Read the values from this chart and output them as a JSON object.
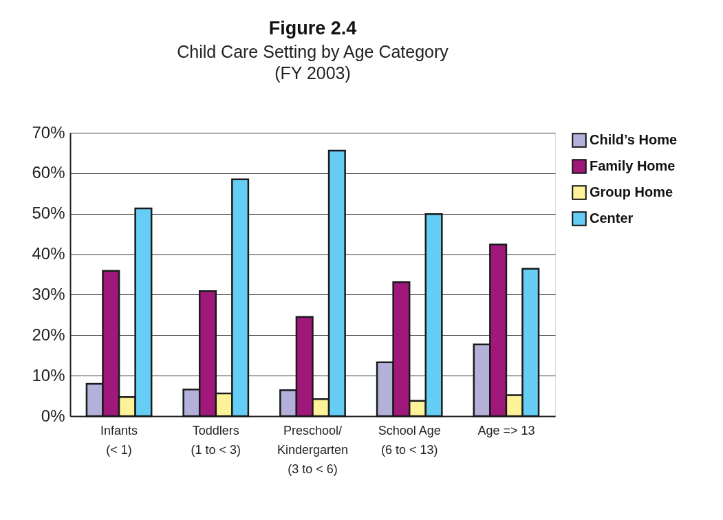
{
  "chart_data": {
    "type": "bar",
    "title": "Figure 2.4",
    "subtitle": [
      "Child Care Setting by Age Category",
      "(FY 2003)"
    ],
    "categories": [
      "Infants\n(< 1)",
      "Toddlers\n(1 to < 3)",
      "Preschool/\nKindergarten\n(3 to < 6)",
      "School Age\n(6 to < 13)",
      "Age => 13"
    ],
    "series": [
      {
        "name": "Child’s Home",
        "color": "#b3b1d9",
        "values": [
          8.0,
          6.6,
          6.4,
          13.3,
          17.7
        ]
      },
      {
        "name": "Family Home",
        "color": "#a0197a",
        "values": [
          35.9,
          30.9,
          24.5,
          33.1,
          42.4
        ]
      },
      {
        "name": "Group Home",
        "color": "#fff399",
        "values": [
          4.7,
          5.6,
          4.2,
          3.8,
          5.2
        ]
      },
      {
        "name": "Center",
        "color": "#66cdf5",
        "values": [
          51.3,
          58.5,
          65.6,
          49.9,
          36.4
        ]
      }
    ],
    "ylim": [
      0,
      70
    ],
    "yticks": [
      {
        "value": 0,
        "label": "0%"
      },
      {
        "value": 10,
        "label": "10%"
      },
      {
        "value": 20,
        "label": "20%"
      },
      {
        "value": 30,
        "label": "30%"
      },
      {
        "value": 40,
        "label": "40%"
      },
      {
        "value": 50,
        "label": "50%"
      },
      {
        "value": 60,
        "label": "60%"
      },
      {
        "value": 70,
        "label": "70%"
      }
    ],
    "grid": "y",
    "legend": "right"
  }
}
